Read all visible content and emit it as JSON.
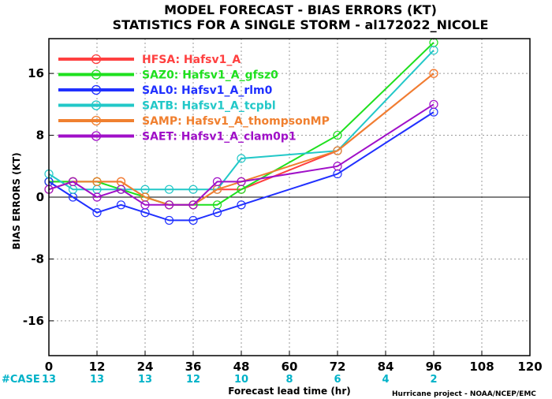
{
  "title_line1": "MODEL FORECAST - BIAS ERRORS (KT)",
  "title_line2": "STATISTICS FOR A SINGLE STORM - al172022_NICOLE",
  "credit": "Hurricane project - NOAA/NCEP/EMC",
  "case_label": "#CASE",
  "chart_data": {
    "type": "line",
    "title": "MODEL FORECAST - BIAS ERRORS (KT)",
    "subtitle": "STATISTICS FOR A SINGLE STORM - al172022_NICOLE",
    "xlabel": "Forecast lead time (hr)",
    "ylabel": "BIAS ERRORS (KT)",
    "xlim": [
      0,
      120
    ],
    "ylim": [
      -20.5,
      20.5
    ],
    "x_ticks": [
      0,
      12,
      24,
      36,
      48,
      60,
      72,
      84,
      96,
      108,
      120
    ],
    "y_ticks": [
      -16,
      -8,
      0,
      8,
      16
    ],
    "grid": true,
    "legend_position": "top-left",
    "case_counts": {
      "x": [
        0,
        12,
        24,
        36,
        48,
        60,
        72,
        84,
        96
      ],
      "values": [
        "13",
        "13",
        "13",
        "12",
        "10",
        "8",
        "6",
        "4",
        "2"
      ]
    },
    "series": [
      {
        "code": "HFSA",
        "name": "Hafsv1_A",
        "color": "#ff4040",
        "x": [
          0,
          6,
          12,
          18,
          24,
          30,
          36,
          42,
          48,
          72,
          96
        ],
        "values": [
          2,
          2,
          2,
          2,
          0,
          -1,
          -1,
          1,
          1,
          6,
          16
        ]
      },
      {
        "code": "SAZ0",
        "name": "Hafsv1_A_gfsz0",
        "color": "#1ee01e",
        "x": [
          0,
          6,
          12,
          18,
          24,
          30,
          36,
          42,
          48,
          72,
          96
        ],
        "values": [
          2,
          2,
          2,
          1,
          0,
          -1,
          -1,
          -1,
          1,
          8,
          20
        ]
      },
      {
        "code": "SAL0",
        "name": "Hafsv1_A_rlm0",
        "color": "#2030ff",
        "x": [
          0,
          6,
          12,
          18,
          24,
          30,
          36,
          42,
          48,
          72,
          96
        ],
        "values": [
          2,
          0,
          -2,
          -1,
          -2,
          -3,
          -3,
          -2,
          -1,
          3,
          11
        ]
      },
      {
        "code": "SATB",
        "name": "Hafsv1_A_tcpbl",
        "color": "#22c8c8",
        "x": [
          0,
          6,
          12,
          18,
          24,
          30,
          36,
          42,
          48,
          72,
          96
        ],
        "values": [
          3,
          1,
          1,
          1,
          1,
          1,
          1,
          1,
          5,
          6,
          19
        ]
      },
      {
        "code": "SAMP",
        "name": "Hafsv1_A_thompsonMP",
        "color": "#f08030",
        "x": [
          0,
          6,
          12,
          18,
          24,
          30,
          36,
          42,
          48,
          72,
          96
        ],
        "values": [
          1,
          2,
          2,
          2,
          0,
          -1,
          -1,
          1,
          2,
          6,
          16
        ]
      },
      {
        "code": "SAET",
        "name": "Hafsv1_A_clam0p1",
        "color": "#a010c8",
        "x": [
          0,
          6,
          12,
          18,
          24,
          30,
          36,
          42,
          48,
          72,
          96
        ],
        "values": [
          1,
          2,
          0,
          1,
          -1,
          -1,
          -1,
          2,
          2,
          4,
          12
        ]
      }
    ]
  }
}
